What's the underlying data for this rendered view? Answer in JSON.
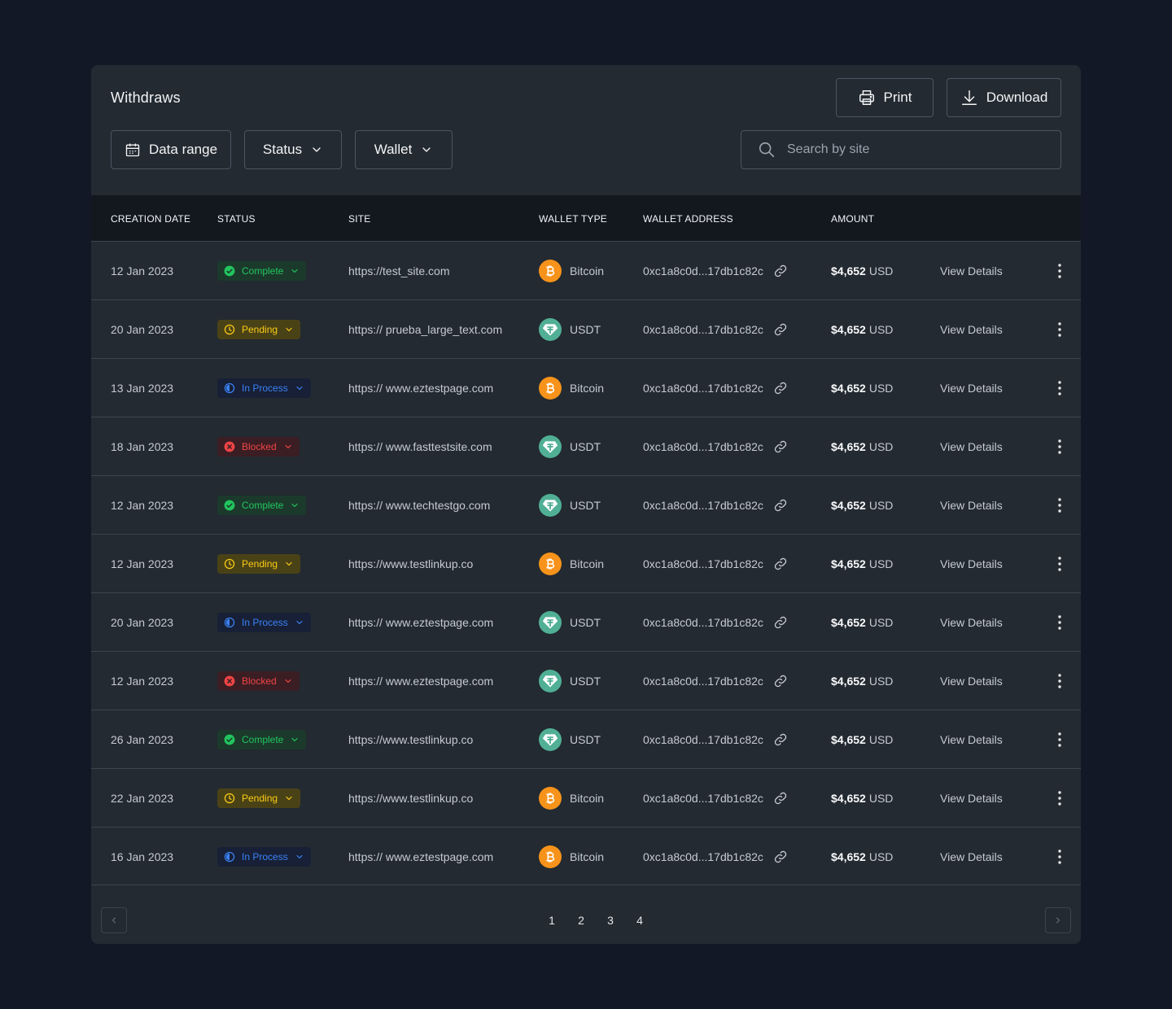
{
  "header": {
    "title": "Withdraws"
  },
  "toolbar": {
    "print_label": "Print",
    "download_label": "Download"
  },
  "filters": {
    "range_label": "Data range",
    "status_label": "Status",
    "wallet_label": "Wallet"
  },
  "search": {
    "placeholder": "Search by site",
    "value": ""
  },
  "table": {
    "columns": [
      "CREATION DATE",
      "STATUS",
      "SITE",
      "WALLET TYPE",
      "WALLET ADDRESS",
      "AMOUNT"
    ],
    "view_label": "View Details",
    "rows": [
      {
        "date": "12 Jan 2023",
        "status": "Complete",
        "status_type": "complete",
        "site": "https://test_site.com",
        "wallet": "Bitcoin",
        "coin": "btc",
        "address": "0xc1a8c0d...17db1c82c",
        "amount": "$4,652",
        "currency": "USD"
      },
      {
        "date": "20 Jan 2023",
        "status": "Pending",
        "status_type": "pending",
        "site": "https:// prueba_large_text.com",
        "wallet": "USDT",
        "coin": "usdt",
        "address": "0xc1a8c0d...17db1c82c",
        "amount": "$4,652",
        "currency": "USD"
      },
      {
        "date": "13 Jan 2023",
        "status": "In Process",
        "status_type": "process",
        "site": "https:// www.eztestpage.com",
        "wallet": "Bitcoin",
        "coin": "btc",
        "address": "0xc1a8c0d...17db1c82c",
        "amount": "$4,652",
        "currency": "USD"
      },
      {
        "date": "18 Jan 2023",
        "status": "Blocked",
        "status_type": "blocked",
        "site": "https:// www.fasttestsite.com",
        "wallet": "USDT",
        "coin": "usdt",
        "address": "0xc1a8c0d...17db1c82c",
        "amount": "$4,652",
        "currency": "USD"
      },
      {
        "date": "12 Jan 2023",
        "status": "Complete",
        "status_type": "complete",
        "site": "https:// www.techtestgo.com",
        "wallet": "USDT",
        "coin": "usdt",
        "address": "0xc1a8c0d...17db1c82c",
        "amount": "$4,652",
        "currency": "USD"
      },
      {
        "date": "12 Jan 2023",
        "status": "Pending",
        "status_type": "pending",
        "site": "https://www.testlinkup.co",
        "wallet": "Bitcoin",
        "coin": "btc",
        "address": "0xc1a8c0d...17db1c82c",
        "amount": "$4,652",
        "currency": "USD"
      },
      {
        "date": "20 Jan 2023",
        "status": "In Process",
        "status_type": "process",
        "site": "https:// www.eztestpage.com",
        "wallet": "USDT",
        "coin": "usdt",
        "address": "0xc1a8c0d...17db1c82c",
        "amount": "$4,652",
        "currency": "USD"
      },
      {
        "date": "12 Jan 2023",
        "status": "Blocked",
        "status_type": "blocked",
        "site": "https:// www.eztestpage.com",
        "wallet": "USDT",
        "coin": "usdt",
        "address": "0xc1a8c0d...17db1c82c",
        "amount": "$4,652",
        "currency": "USD"
      },
      {
        "date": "26 Jan 2023",
        "status": "Complete",
        "status_type": "complete",
        "site": "https://www.testlinkup.co",
        "wallet": "USDT",
        "coin": "usdt",
        "address": "0xc1a8c0d...17db1c82c",
        "amount": "$4,652",
        "currency": "USD"
      },
      {
        "date": "22 Jan 2023",
        "status": "Pending",
        "status_type": "pending",
        "site": "https://www.testlinkup.co",
        "wallet": "Bitcoin",
        "coin": "btc",
        "address": "0xc1a8c0d...17db1c82c",
        "amount": "$4,652",
        "currency": "USD"
      },
      {
        "date": "16 Jan 2023",
        "status": "In Process",
        "status_type": "process",
        "site": "https:// www.eztestpage.com",
        "wallet": "Bitcoin",
        "coin": "btc",
        "address": "0xc1a8c0d...17db1c82c",
        "amount": "$4,652",
        "currency": "USD"
      }
    ]
  },
  "pagination": {
    "pages": [
      "1",
      "2",
      "3",
      "4"
    ]
  },
  "colors": {
    "background": "#121826",
    "card": "#232a31",
    "complete": "#22c55e",
    "pending": "#facc15",
    "process": "#3b82f6",
    "blocked": "#ef4444",
    "bitcoin": "#f7931a",
    "usdt": "#50af95"
  }
}
